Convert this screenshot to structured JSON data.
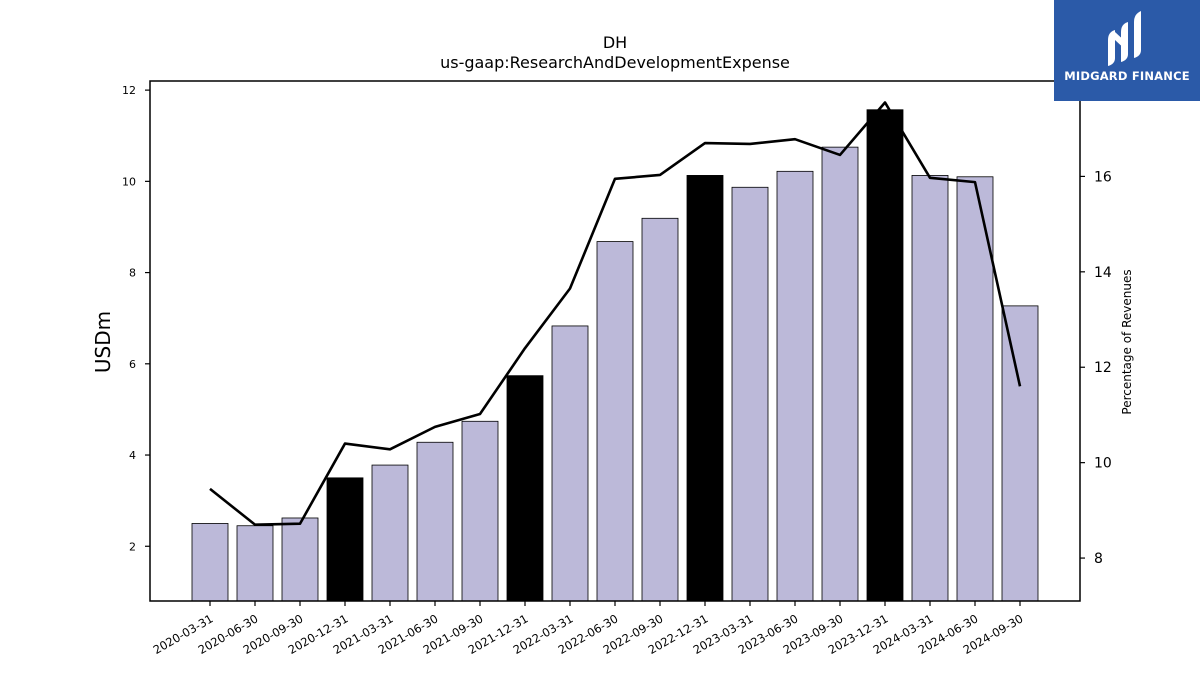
{
  "chart_data": {
    "type": "bar",
    "title": "DH",
    "subtitle": "us-gaap:ResearchAndDevelopmentExpense",
    "ylabel": "USDm",
    "y2label": "Percentage of Revenues",
    "ylim": [
      0.8,
      12.2
    ],
    "y2lim": [
      7.1,
      18.0
    ],
    "yticks": [
      2,
      4,
      6,
      8,
      10,
      12
    ],
    "y2ticks": [
      8,
      10,
      12,
      14,
      16
    ],
    "categories": [
      "2020-03-31",
      "2020-06-30",
      "2020-09-30",
      "2020-12-31",
      "2021-03-31",
      "2021-06-30",
      "2021-09-30",
      "2021-12-31",
      "2022-03-31",
      "2022-06-30",
      "2022-09-30",
      "2022-12-31",
      "2023-03-31",
      "2023-06-30",
      "2023-09-30",
      "2023-12-31",
      "2024-03-31",
      "2024-06-30",
      "2024-09-30"
    ],
    "series": [
      {
        "type": "bar",
        "values": [
          2.5,
          2.45,
          2.62,
          3.5,
          3.78,
          4.28,
          4.74,
          5.74,
          6.83,
          8.68,
          9.19,
          10.13,
          9.87,
          10.22,
          10.75,
          11.57,
          10.13,
          10.1,
          7.27
        ],
        "highlight": [
          false,
          false,
          false,
          true,
          false,
          false,
          false,
          true,
          false,
          false,
          false,
          true,
          false,
          false,
          false,
          true,
          false,
          false,
          false
        ]
      },
      {
        "type": "line",
        "axis": "y2",
        "values": [
          9.45,
          8.7,
          8.72,
          10.4,
          10.28,
          10.75,
          11.02,
          12.4,
          13.65,
          15.95,
          16.03,
          16.7,
          16.68,
          16.78,
          16.45,
          17.55,
          15.97,
          15.88,
          11.6
        ]
      }
    ],
    "colors": {
      "bar": "#bcb9d9",
      "bar_highlight": "#000000",
      "line": "#000000",
      "edge": "#000000"
    },
    "grid": false,
    "legend": "none"
  },
  "logo": {
    "text": "MIDGARD FINANCE",
    "icon": "midgard-logo-icon",
    "background": "#2b5aa8"
  }
}
